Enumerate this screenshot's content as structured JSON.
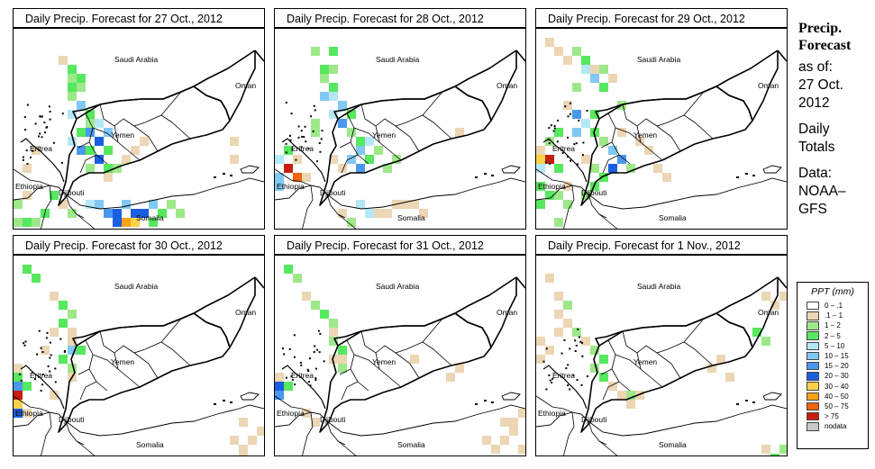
{
  "panels": [
    {
      "title": "Daily Precip. Forecast for  27 Oct., 2012",
      "variant": 0
    },
    {
      "title": "Daily Precip. Forecast for  28 Oct., 2012",
      "variant": 1
    },
    {
      "title": "Daily Precip. Forecast for  29 Oct., 2012",
      "variant": 2
    },
    {
      "title": "Daily Precip. Forecast for  30 Oct., 2012",
      "variant": 3
    },
    {
      "title": "Daily Precip. Forecast for  31 Oct., 2012",
      "variant": 4
    },
    {
      "title": "Daily Precip. Forecast for  1 Nov., 2012",
      "variant": 5
    }
  ],
  "map_labels": {
    "saudi": "Saudi Arabia",
    "oman": "Oman",
    "yemen": "Yemen",
    "eritrea": "Eritrea",
    "ethiopia": "Ethiopia",
    "djibouti": "Djibouti",
    "somalia": "Somalia"
  },
  "side": {
    "heading_1": "Precip.",
    "heading_2": "Forecast",
    "asof_1": "as of:",
    "asof_2": "27 Oct.",
    "asof_3": "2012",
    "daily_1": "Daily",
    "daily_2": "Totals",
    "data_1": "Data:",
    "data_2": "NOAA–",
    "data_3": "GFS"
  },
  "legend": {
    "title": "PPT (mm)",
    "items": [
      {
        "label": "0 – .1",
        "color": "#ffffff"
      },
      {
        "label": ".1 – 1",
        "color": "#ecd6b4"
      },
      {
        "label": "1 – 2",
        "color": "#9ee88a"
      },
      {
        "label": "2 – 5",
        "color": "#56e85e"
      },
      {
        "label": "5 – 10",
        "color": "#b4e8f6"
      },
      {
        "label": "10 – 15",
        "color": "#82c8f4"
      },
      {
        "label": "15 – 20",
        "color": "#4a98ee"
      },
      {
        "label": "20 – 30",
        "color": "#1a5ee0"
      },
      {
        "label": "30 – 40",
        "color": "#fad24a"
      },
      {
        "label": "40 – 50",
        "color": "#f8a21c"
      },
      {
        "label": "50 – 75",
        "color": "#f0640c"
      },
      {
        "label": "> 75",
        "color": "#c81e0e"
      },
      {
        "label": "nodata",
        "color": "#c8c8c8"
      }
    ]
  }
}
